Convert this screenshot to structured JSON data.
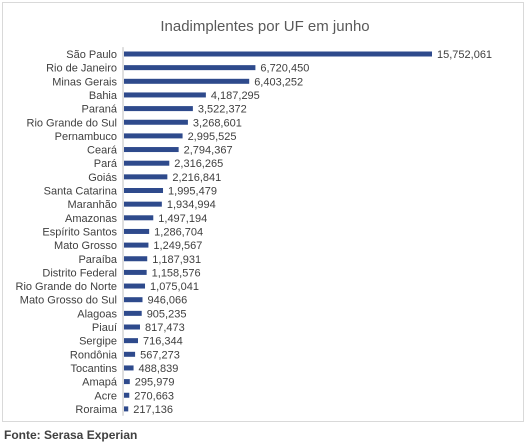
{
  "chart_data": {
    "type": "bar",
    "orientation": "horizontal",
    "title": "Inadimplentes  por UF em junho",
    "categories": [
      "São Paulo",
      "Rio de Janeiro",
      "Minas Gerais",
      "Bahia",
      "Paraná",
      "Rio Grande do Sul",
      "Pernambuco",
      "Ceará",
      "Pará",
      "Goiás",
      "Santa Catarina",
      "Maranhão",
      "Amazonas",
      "Espírito Santos",
      "Mato Grosso",
      "Paraíba",
      "Distrito Federal",
      "Rio Grande do Norte",
      "Mato Grosso do Sul",
      "Alagoas",
      "Piauí",
      "Sergipe",
      "Rondônia",
      "Tocantins",
      "Amapá",
      "Acre",
      "Roraima"
    ],
    "values": [
      15752061,
      6720450,
      6403252,
      4187295,
      3522372,
      3268601,
      2995525,
      2794367,
      2316265,
      2216841,
      1995479,
      1934994,
      1497194,
      1286704,
      1249567,
      1187931,
      1158576,
      1075041,
      946066,
      905235,
      817473,
      716344,
      567273,
      488839,
      295979,
      270663,
      217136
    ],
    "value_labels": [
      "15,752,061",
      "6,720,450",
      "6,403,252",
      "4,187,295",
      "3,522,372",
      "3,268,601",
      "2,995,525",
      "2,794,367",
      "2,316,265",
      "2,216,841",
      "1,995,479",
      "1,934,994",
      "1,497,194",
      "1,286,704",
      "1,249,567",
      "1,187,931",
      "1,158,576",
      "1,075,041",
      "946,066",
      "905,235",
      "817,473",
      "716,344",
      "567,273",
      "488,839",
      "295,979",
      "270,663",
      "217,136"
    ],
    "xlabel": "",
    "ylabel": "",
    "xlim": [
      0,
      15752061
    ],
    "grid": false,
    "legend": "none",
    "bar_color": "#2e4a8c",
    "axis_color": "#bfbfbf",
    "text_color": "#404040",
    "title_color": "#595959"
  },
  "source": {
    "label": "Fonte: Serasa Experian"
  }
}
